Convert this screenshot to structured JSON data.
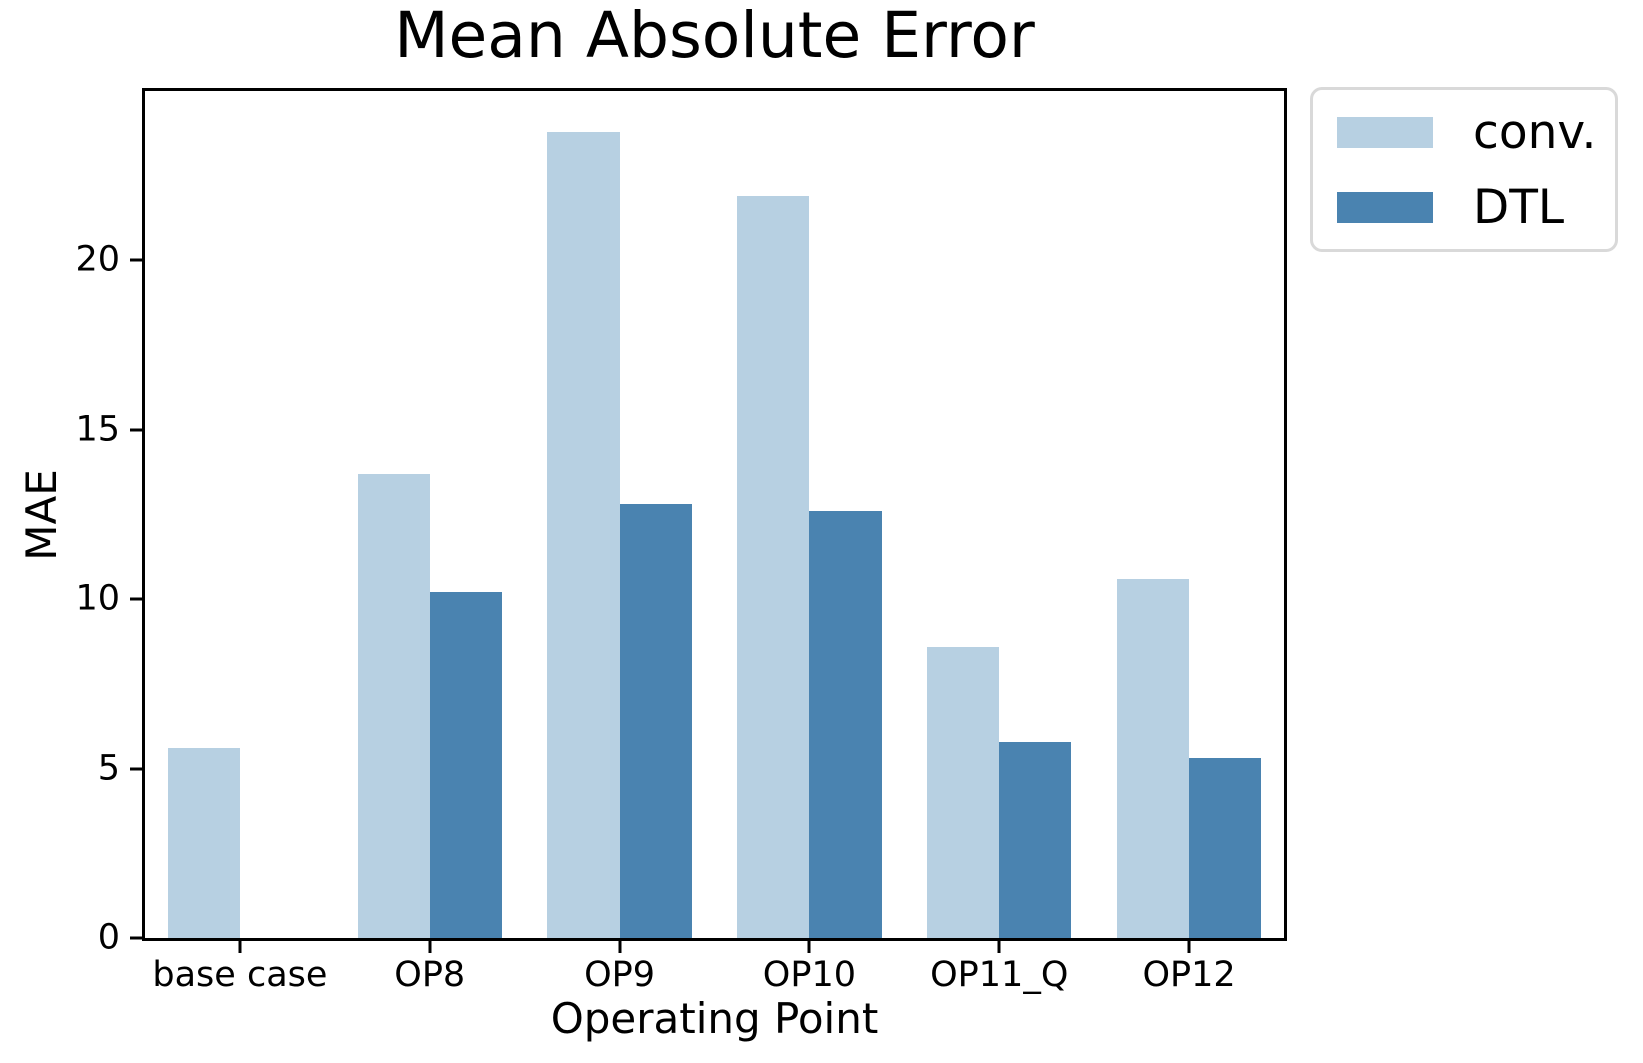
{
  "figure": {
    "background": "#ffffff",
    "axis_color": "#000000",
    "legend_border_color": "#d9d9d9"
  },
  "chart_data": {
    "type": "bar",
    "title": "Mean Absolute Error",
    "xlabel": "Operating Point",
    "ylabel": "MAE",
    "categories": [
      "base case",
      "OP8",
      "OP9",
      "OP10",
      "OP11_Q",
      "OP12"
    ],
    "series": [
      {
        "name": "conv.",
        "color": "#b7d0e2",
        "values": [
          5.6,
          13.7,
          23.8,
          21.9,
          8.6,
          10.6
        ]
      },
      {
        "name": "DTL",
        "color": "#4a83b0",
        "values": [
          0,
          10.2,
          12.8,
          12.6,
          5.8,
          5.3
        ]
      }
    ],
    "ylim": [
      0,
      25
    ],
    "yticks": [
      0,
      5,
      10,
      15,
      20
    ],
    "bar_width_units": 0.38,
    "grid": false,
    "legend_position": "outside-upper-right"
  }
}
